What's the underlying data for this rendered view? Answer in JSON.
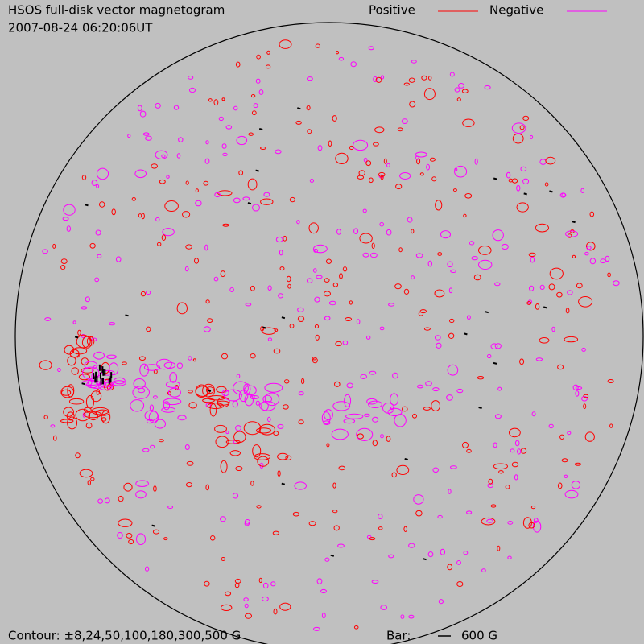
{
  "header": {
    "title": "HSOS full-disk vector magnetogram",
    "timestamp": "2007-08-24 06:20:06UT"
  },
  "legend": [
    {
      "label": "Positive",
      "color": "#ff0000"
    },
    {
      "label": "Negative",
      "color": "#ff00ff"
    }
  ],
  "footer": {
    "contour": "Contour: ±8,24,50,100,180,300,500 G",
    "bar_label": "Bar:",
    "bar_value": "600 G"
  }
}
